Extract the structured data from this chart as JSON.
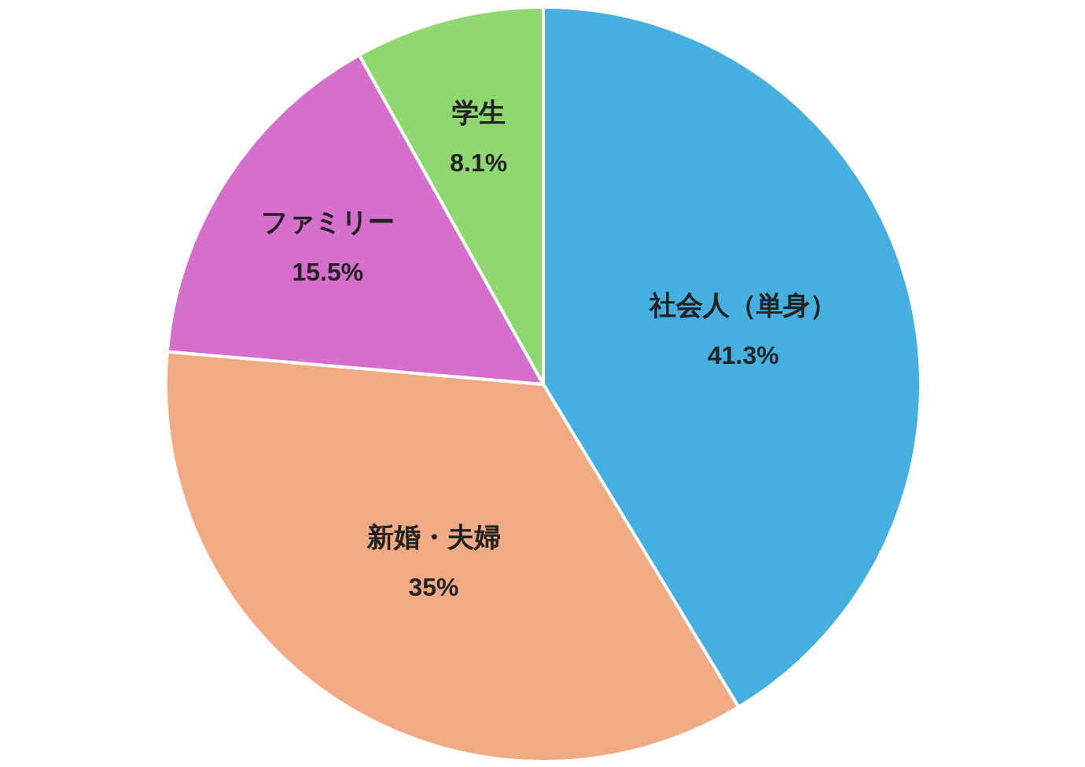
{
  "chart_data": {
    "type": "pie",
    "categories": [
      "社会人（単身）",
      "新婚・夫婦",
      "ファミリー",
      "学生"
    ],
    "values": [
      41.3,
      35,
      15.5,
      8.1
    ],
    "colors": [
      "#45b0e0",
      "#f2aa84",
      "#d66fcc",
      "#8fd870"
    ],
    "value_labels": [
      "41.3%",
      "35%",
      "15.5%",
      "8.1%"
    ]
  }
}
